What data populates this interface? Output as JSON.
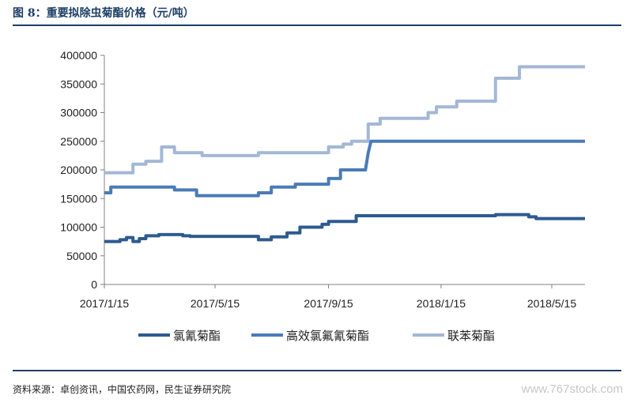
{
  "figure": {
    "title": "图 8：重要拟除虫菊酯价格（元/吨）",
    "source": "资料来源：卓创资讯，中国农药网，民生证券研究院",
    "watermark": "www.767stock.com"
  },
  "chart_data": {
    "type": "line",
    "title": "",
    "xlabel": "",
    "ylabel": "",
    "ylim": [
      0,
      400000
    ],
    "yticks": [
      0,
      50000,
      100000,
      150000,
      200000,
      250000,
      300000,
      350000,
      400000
    ],
    "ytick_labels": [
      "0",
      "50000",
      "100000",
      "150000",
      "200000",
      "250000",
      "300000",
      "350000",
      "400000"
    ],
    "xrange": [
      "2017-01-15",
      "2018-06-20"
    ],
    "xticks": [
      "2017-01-15",
      "2017-05-15",
      "2017-09-15",
      "2018-01-15",
      "2018-05-15"
    ],
    "xtick_labels": [
      "2017/1/15",
      "2017/5/15",
      "2017/9/15",
      "2018/1/15",
      "2018/5/15"
    ],
    "legend_position": "bottom",
    "grid": false,
    "series": [
      {
        "name": "氯氰菊酯",
        "color": "#2e5b8f",
        "points": [
          [
            "2017-01-15",
            75000
          ],
          [
            "2017-02-01",
            75000
          ],
          [
            "2017-02-01",
            78000
          ],
          [
            "2017-02-08",
            78000
          ],
          [
            "2017-02-08",
            82000
          ],
          [
            "2017-02-15",
            82000
          ],
          [
            "2017-02-15",
            75000
          ],
          [
            "2017-02-22",
            75000
          ],
          [
            "2017-02-22",
            80000
          ],
          [
            "2017-03-01",
            80000
          ],
          [
            "2017-03-01",
            85000
          ],
          [
            "2017-03-15",
            85000
          ],
          [
            "2017-03-15",
            87000
          ],
          [
            "2017-04-10",
            87000
          ],
          [
            "2017-04-10",
            85000
          ],
          [
            "2017-04-18",
            85000
          ],
          [
            "2017-04-18",
            84000
          ],
          [
            "2017-07-01",
            84000
          ],
          [
            "2017-07-01",
            78000
          ],
          [
            "2017-07-15",
            78000
          ],
          [
            "2017-07-15",
            83000
          ],
          [
            "2017-08-01",
            83000
          ],
          [
            "2017-08-01",
            90000
          ],
          [
            "2017-08-15",
            90000
          ],
          [
            "2017-08-15",
            100000
          ],
          [
            "2017-09-08",
            100000
          ],
          [
            "2017-09-08",
            105000
          ],
          [
            "2017-09-15",
            105000
          ],
          [
            "2017-09-15",
            110000
          ],
          [
            "2017-10-15",
            110000
          ],
          [
            "2017-10-15",
            120000
          ],
          [
            "2018-03-15",
            120000
          ],
          [
            "2018-03-15",
            122000
          ],
          [
            "2018-04-20",
            122000
          ],
          [
            "2018-04-20",
            118000
          ],
          [
            "2018-04-28",
            118000
          ],
          [
            "2018-04-28",
            115000
          ],
          [
            "2018-06-20",
            115000
          ]
        ]
      },
      {
        "name": "高效氯氟氰菊酯",
        "color": "#4a7bb8",
        "points": [
          [
            "2017-01-15",
            160000
          ],
          [
            "2017-01-22",
            160000
          ],
          [
            "2017-01-22",
            170000
          ],
          [
            "2017-04-01",
            170000
          ],
          [
            "2017-04-01",
            165000
          ],
          [
            "2017-04-25",
            165000
          ],
          [
            "2017-04-25",
            155000
          ],
          [
            "2017-07-01",
            155000
          ],
          [
            "2017-07-01",
            160000
          ],
          [
            "2017-07-15",
            160000
          ],
          [
            "2017-07-15",
            170000
          ],
          [
            "2017-08-10",
            170000
          ],
          [
            "2017-08-10",
            175000
          ],
          [
            "2017-09-15",
            175000
          ],
          [
            "2017-09-15",
            185000
          ],
          [
            "2017-09-28",
            185000
          ],
          [
            "2017-09-28",
            200000
          ],
          [
            "2017-10-25",
            200000
          ],
          [
            "2017-10-28",
            230000
          ],
          [
            "2017-10-31",
            250000
          ],
          [
            "2018-06-20",
            250000
          ]
        ]
      },
      {
        "name": "联苯菊酯",
        "color": "#a3b7d6",
        "points": [
          [
            "2017-01-15",
            195000
          ],
          [
            "2017-02-15",
            195000
          ],
          [
            "2017-02-15",
            210000
          ],
          [
            "2017-03-01",
            210000
          ],
          [
            "2017-03-01",
            215000
          ],
          [
            "2017-03-18",
            215000
          ],
          [
            "2017-03-18",
            240000
          ],
          [
            "2017-04-01",
            240000
          ],
          [
            "2017-04-01",
            230000
          ],
          [
            "2017-05-01",
            230000
          ],
          [
            "2017-05-01",
            225000
          ],
          [
            "2017-07-01",
            225000
          ],
          [
            "2017-07-01",
            230000
          ],
          [
            "2017-09-15",
            230000
          ],
          [
            "2017-09-15",
            240000
          ],
          [
            "2017-10-01",
            240000
          ],
          [
            "2017-10-01",
            245000
          ],
          [
            "2017-10-10",
            245000
          ],
          [
            "2017-10-10",
            250000
          ],
          [
            "2017-10-28",
            250000
          ],
          [
            "2017-10-28",
            280000
          ],
          [
            "2017-11-10",
            280000
          ],
          [
            "2017-11-10",
            290000
          ],
          [
            "2018-01-01",
            290000
          ],
          [
            "2018-01-01",
            300000
          ],
          [
            "2018-01-10",
            300000
          ],
          [
            "2018-01-10",
            310000
          ],
          [
            "2018-02-01",
            310000
          ],
          [
            "2018-02-01",
            320000
          ],
          [
            "2018-03-15",
            320000
          ],
          [
            "2018-03-15",
            360000
          ],
          [
            "2018-04-10",
            360000
          ],
          [
            "2018-04-10",
            380000
          ],
          [
            "2018-06-20",
            380000
          ]
        ]
      }
    ]
  }
}
